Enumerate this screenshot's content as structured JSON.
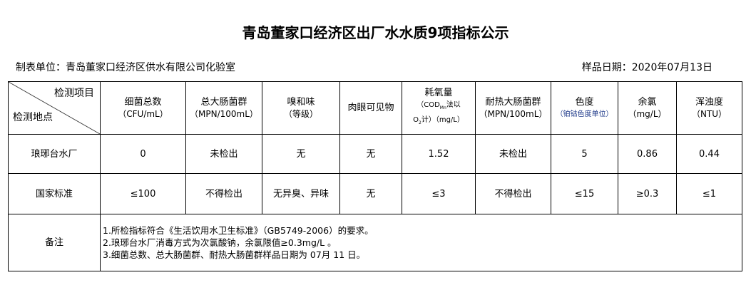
{
  "title": "青岛董家口经济区出厂水水质9项指标公示",
  "unit": "制表单位：青岛董家口经济区供水有限公司化验室",
  "date": "样品日期：2020年07月13日",
  "corner": {
    "item": "检测项目",
    "site": "检测地点"
  },
  "headers": [
    {
      "name": "细菌总数",
      "unit": "（CFU/mL）"
    },
    {
      "name": "总大肠菌群",
      "unit": "（MPN/100mL）"
    },
    {
      "name": "嗅和味",
      "unit": "（等级）"
    },
    {
      "name": "肉眼可见物",
      "unit": ""
    },
    {
      "name": "耗氧量",
      "unit": "（COD",
      "unit_sub": "Mn",
      "unit2": "法以",
      "unit3": "O",
      "unit3_sub": "2",
      "unit4": "计）（mg/L）"
    },
    {
      "name": "耐热大肠菌群",
      "unit": "（MPN/100mL）"
    },
    {
      "name": "色度",
      "unit": "（铂钴色度单位）"
    },
    {
      "name": "余氯",
      "unit": "（mg/L）"
    },
    {
      "name": "浑浊度",
      "unit": "（NTU）"
    }
  ],
  "rows": [
    {
      "label": "琅琊台水厂",
      "values": [
        "0",
        "未检出",
        "无",
        "无",
        "1.52",
        "未检出",
        "5",
        "0.86",
        "0.44"
      ]
    },
    {
      "label": "国家标准",
      "values": [
        "≤100",
        "不得检出",
        "无异臭、异味",
        "无",
        "≤3",
        "不得检出",
        "≤15",
        "≥0.3",
        "≤1"
      ]
    }
  ],
  "remarks": {
    "label": "备注",
    "lines": [
      "1.所检指标符合《生活饮用水卫生标准》（GB5749-2006）的要求。",
      "2.琅琊台水厂消毒方式为次氯酸钠，余氯限值≥0.3mg/L 。",
      "3.细菌总数、总大肠菌群、耐热大肠菌群样品日期为 07月 11 日。"
    ]
  }
}
